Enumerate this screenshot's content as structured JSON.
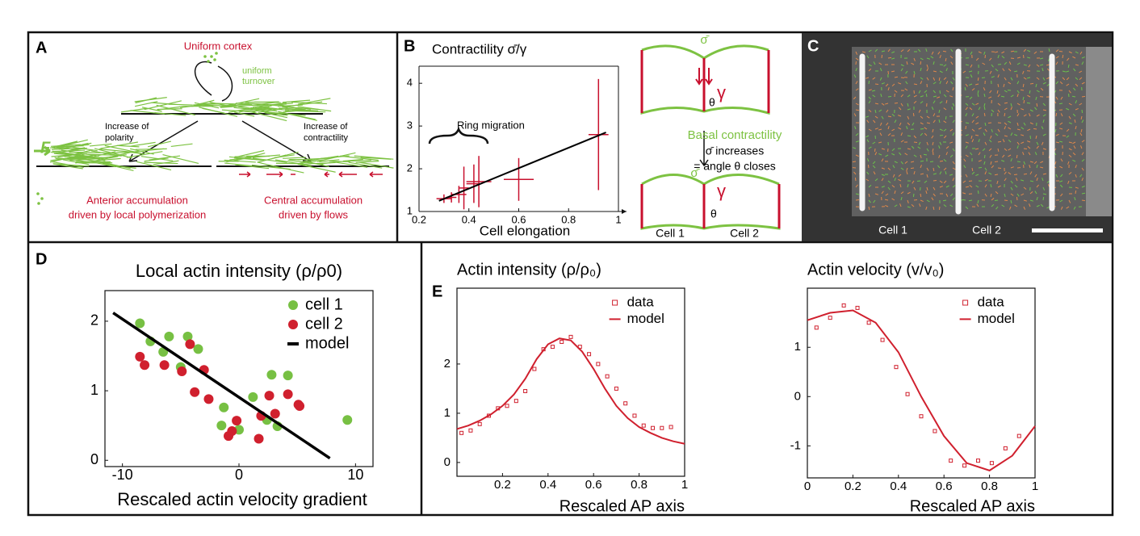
{
  "panels": {
    "a": {
      "label": "A",
      "title": "Uniform cortex",
      "turnover": [
        "uniform",
        "turnover"
      ],
      "polarity": [
        "Increase of",
        "polarity"
      ],
      "contractility": [
        "Increase of",
        "contractility"
      ],
      "force": "F",
      "anterior": [
        "Anterior accumulation",
        "driven by local polymerization"
      ],
      "central": [
        "Central accumulation",
        "driven by flows"
      ]
    },
    "b": {
      "label": "B",
      "sigma": "σ̄",
      "gamma": "γ",
      "theta": "θ",
      "note": [
        "Basal contractility",
        "σ̄ increases",
        "= angle θ closes"
      ],
      "cells": [
        "Cell 1",
        "Cell 2"
      ]
    },
    "c": {
      "label": "C",
      "cells": [
        "Cell 1",
        "Cell 2"
      ]
    },
    "d": {
      "label": "D"
    },
    "e": {
      "label": "E"
    }
  },
  "chart_data": [
    {
      "type": "scatter",
      "title": "Contractility σ̄/γ",
      "xlabel": "Cell elongation",
      "annotation": "Ring migration",
      "xlim": [
        0.2,
        1
      ],
      "ylim": [
        1,
        4.4
      ],
      "xticks": [
        0.2,
        0.4,
        0.6,
        0.8,
        1
      ],
      "yticks": [
        1,
        2,
        3,
        4
      ],
      "series": [
        {
          "type": "errorbar",
          "color": "#c8102e",
          "x": [
            0.3,
            0.33,
            0.36,
            0.38,
            0.42,
            0.44,
            0.6,
            0.92
          ],
          "values": [
            1.3,
            1.33,
            1.4,
            1.55,
            1.65,
            1.7,
            1.75,
            2.8
          ],
          "xerr": [
            0.03,
            0.02,
            0.03,
            0.02,
            0.03,
            0.05,
            0.06,
            0.04
          ],
          "yerr": [
            0.1,
            0.12,
            0.2,
            0.5,
            0.45,
            0.6,
            0.5,
            1.3
          ]
        },
        {
          "type": "line",
          "color": "#000000",
          "x": [
            0.28,
            0.95
          ],
          "values": [
            1.25,
            2.85
          ]
        }
      ]
    },
    {
      "type": "scatter",
      "title": "Local actin intensity (ρ/ρ0)",
      "xlabel": "Rescaled actin velocity gradient",
      "xlim": [
        -11.5,
        11.5
      ],
      "ylim": [
        -0.09,
        2.44
      ],
      "xticks": [
        -10,
        0,
        10
      ],
      "yticks": [
        0,
        1,
        2
      ],
      "legend": "upper right",
      "series": [
        {
          "name": "cell 1",
          "type": "scatter",
          "marker": "circle",
          "color": "#77c043",
          "x": [
            -8.5,
            -7.6,
            -6.0,
            -6.5,
            -4.4,
            -5.0,
            -3.5,
            -1.3,
            1.2,
            2.8,
            4.2,
            3.3,
            9.3,
            0.0,
            -1.5,
            2.4
          ],
          "values": [
            1.97,
            1.71,
            1.78,
            1.56,
            1.78,
            1.34,
            1.6,
            0.76,
            0.91,
            1.23,
            1.22,
            0.49,
            0.58,
            0.44,
            0.5,
            0.58
          ]
        },
        {
          "name": "cell 2",
          "type": "scatter",
          "marker": "circle",
          "color": "#d0202e",
          "x": [
            -8.5,
            -8.1,
            -6.4,
            -4.2,
            -4.9,
            -3.0,
            -3.8,
            -2.6,
            -0.9,
            -0.6,
            -0.2,
            2.6,
            3.1,
            1.9,
            1.7,
            4.2,
            5.1,
            5.2
          ],
          "values": [
            1.49,
            1.37,
            1.37,
            1.67,
            1.28,
            1.3,
            0.98,
            0.88,
            0.35,
            0.42,
            0.57,
            0.93,
            0.67,
            0.64,
            0.31,
            0.95,
            0.8,
            0.78
          ]
        },
        {
          "name": "model",
          "type": "line",
          "color": "#000000",
          "x": [
            -10.8,
            7.8
          ],
          "values": [
            2.12,
            0.03
          ]
        }
      ]
    },
    {
      "type": "line",
      "title": "Actin intensity (ρ/ρ₀)",
      "xlabel": "Rescaled AP axis",
      "xlim": [
        0,
        1
      ],
      "ylim": [
        -0.28,
        3.54
      ],
      "xticks": [
        0.2,
        0.4,
        0.6,
        0.8,
        1
      ],
      "yticks": [
        0,
        1,
        2
      ],
      "legend": "upper right",
      "series": [
        {
          "name": "data",
          "type": "scatter",
          "marker": "square",
          "color": "#d0202e",
          "x": [
            0.02,
            0.06,
            0.1,
            0.14,
            0.18,
            0.22,
            0.26,
            0.3,
            0.34,
            0.38,
            0.42,
            0.46,
            0.5,
            0.54,
            0.58,
            0.62,
            0.66,
            0.7,
            0.74,
            0.78,
            0.82,
            0.86,
            0.9,
            0.94
          ],
          "values": [
            0.6,
            0.65,
            0.78,
            0.95,
            1.1,
            1.15,
            1.25,
            1.45,
            1.9,
            2.3,
            2.35,
            2.45,
            2.55,
            2.35,
            2.2,
            2.0,
            1.75,
            1.5,
            1.2,
            0.95,
            0.75,
            0.7,
            0.7,
            0.72
          ]
        },
        {
          "name": "model",
          "type": "line",
          "color": "#d0202e",
          "x": [
            0,
            0.05,
            0.1,
            0.15,
            0.2,
            0.25,
            0.3,
            0.35,
            0.4,
            0.45,
            0.5,
            0.55,
            0.6,
            0.65,
            0.7,
            0.75,
            0.8,
            0.85,
            0.9,
            0.95,
            1
          ],
          "values": [
            0.68,
            0.75,
            0.85,
            0.98,
            1.15,
            1.38,
            1.7,
            2.1,
            2.4,
            2.52,
            2.48,
            2.25,
            1.9,
            1.5,
            1.15,
            0.9,
            0.72,
            0.6,
            0.5,
            0.43,
            0.38
          ]
        }
      ]
    },
    {
      "type": "line",
      "title": "Actin velocity (v/v₀)",
      "xlabel": "Rescaled AP axis",
      "xlim": [
        0,
        1
      ],
      "ylim": [
        -1.65,
        2.2
      ],
      "xticks": [
        0,
        0.2,
        0.4,
        0.6,
        0.8,
        1
      ],
      "yticks": [
        -1,
        0,
        1
      ],
      "legend": "upper right",
      "series": [
        {
          "name": "data",
          "type": "scatter",
          "marker": "square",
          "color": "#d0202e",
          "x": [
            0.04,
            0.1,
            0.16,
            0.22,
            0.27,
            0.33,
            0.39,
            0.44,
            0.5,
            0.56,
            0.63,
            0.69,
            0.75,
            0.81,
            0.87,
            0.93
          ],
          "values": [
            1.4,
            1.6,
            1.85,
            1.8,
            1.5,
            1.15,
            0.6,
            0.05,
            -0.4,
            -0.7,
            -1.3,
            -1.4,
            -1.3,
            -1.35,
            -1.05,
            -0.8
          ]
        },
        {
          "name": "model",
          "type": "line",
          "color": "#d0202e",
          "x": [
            0,
            0.1,
            0.2,
            0.3,
            0.4,
            0.5,
            0.6,
            0.7,
            0.8,
            0.9,
            1
          ],
          "values": [
            1.55,
            1.7,
            1.75,
            1.5,
            0.9,
            0.0,
            -0.8,
            -1.35,
            -1.5,
            -1.2,
            -0.6
          ]
        }
      ]
    }
  ]
}
